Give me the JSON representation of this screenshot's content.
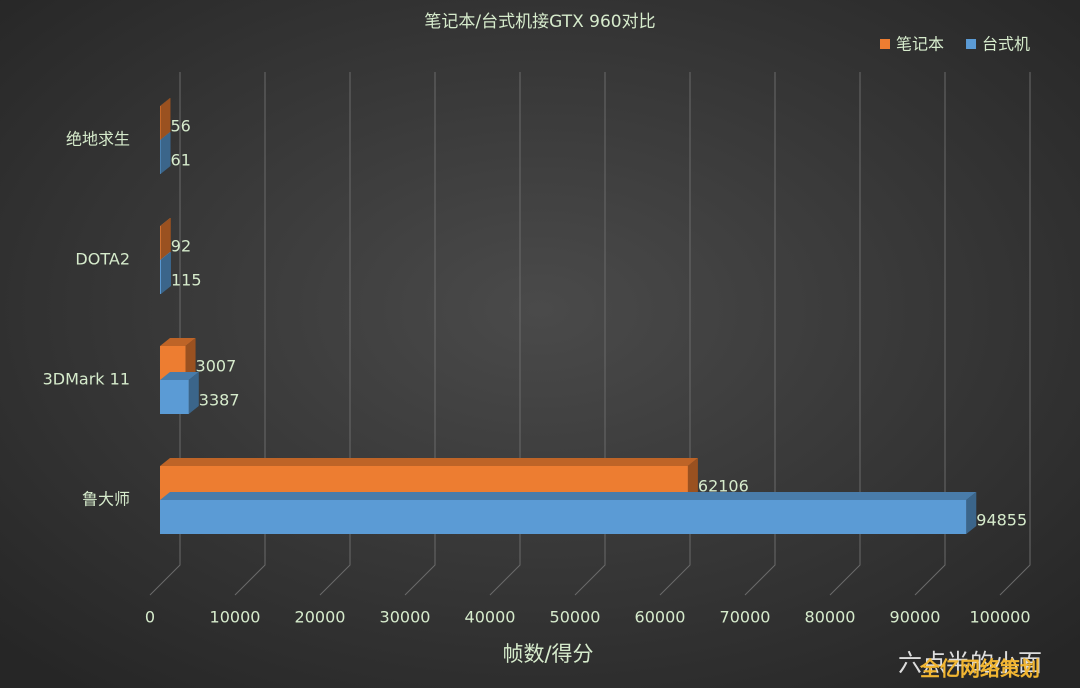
{
  "chart_data": {
    "type": "bar3d_horizontal",
    "title": "笔记本/台式机接GTX 960对比",
    "x_label": "帧数/得分",
    "categories": [
      "绝地求生",
      "DOTA2",
      "3DMark 11",
      "鲁大师"
    ],
    "series": [
      {
        "name": "笔记本",
        "color": "#ed7d31",
        "values": [
          56,
          92,
          3007,
          62106
        ]
      },
      {
        "name": "台式机",
        "color": "#5b9bd5",
        "values": [
          61,
          115,
          3387,
          94855
        ]
      }
    ],
    "xlim": [
      0,
      100000
    ],
    "xticks": [
      0,
      10000,
      20000,
      30000,
      40000,
      50000,
      60000,
      70000,
      80000,
      90000,
      100000
    ],
    "grid": true,
    "legend": "top-right"
  },
  "watermark": {
    "text": "六点半的小面",
    "overlay": "全亿网络策划"
  }
}
